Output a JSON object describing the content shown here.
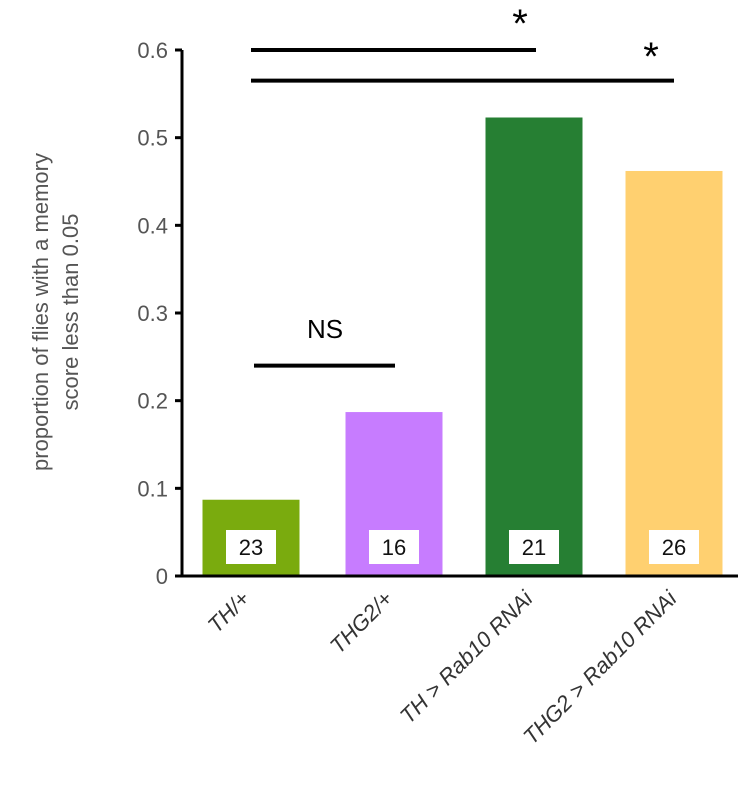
{
  "chart_data": {
    "type": "bar",
    "title": "",
    "xlabel": "",
    "ylabel": [
      "proportion of flies with a memory",
      "score less  than 0.05"
    ],
    "ylim": [
      0,
      0.6
    ],
    "yticks": [
      "0",
      "0.1",
      "0.2",
      "0.3",
      "0.4",
      "0.5",
      "0.6"
    ],
    "categories": [
      "TH/+",
      "THG2/+",
      "TH > Rab10 RNAi",
      "THG2 > Rab10 RNAi"
    ],
    "values": [
      0.087,
      0.187,
      0.523,
      0.462
    ],
    "sample_sizes": [
      "23",
      "16",
      "21",
      "26"
    ],
    "colors": [
      "#7aab0e",
      "#c77cff",
      "#267f33",
      "#ffd070"
    ],
    "grid": false,
    "legend": "none",
    "significance": [
      {
        "from": 0,
        "to": 2,
        "y": 0.6,
        "label": "*"
      },
      {
        "from": 0,
        "to": 3,
        "y": 0.565,
        "label": "*"
      },
      {
        "from": 0,
        "to": 1,
        "y": 0.24,
        "label": "NS"
      }
    ]
  }
}
